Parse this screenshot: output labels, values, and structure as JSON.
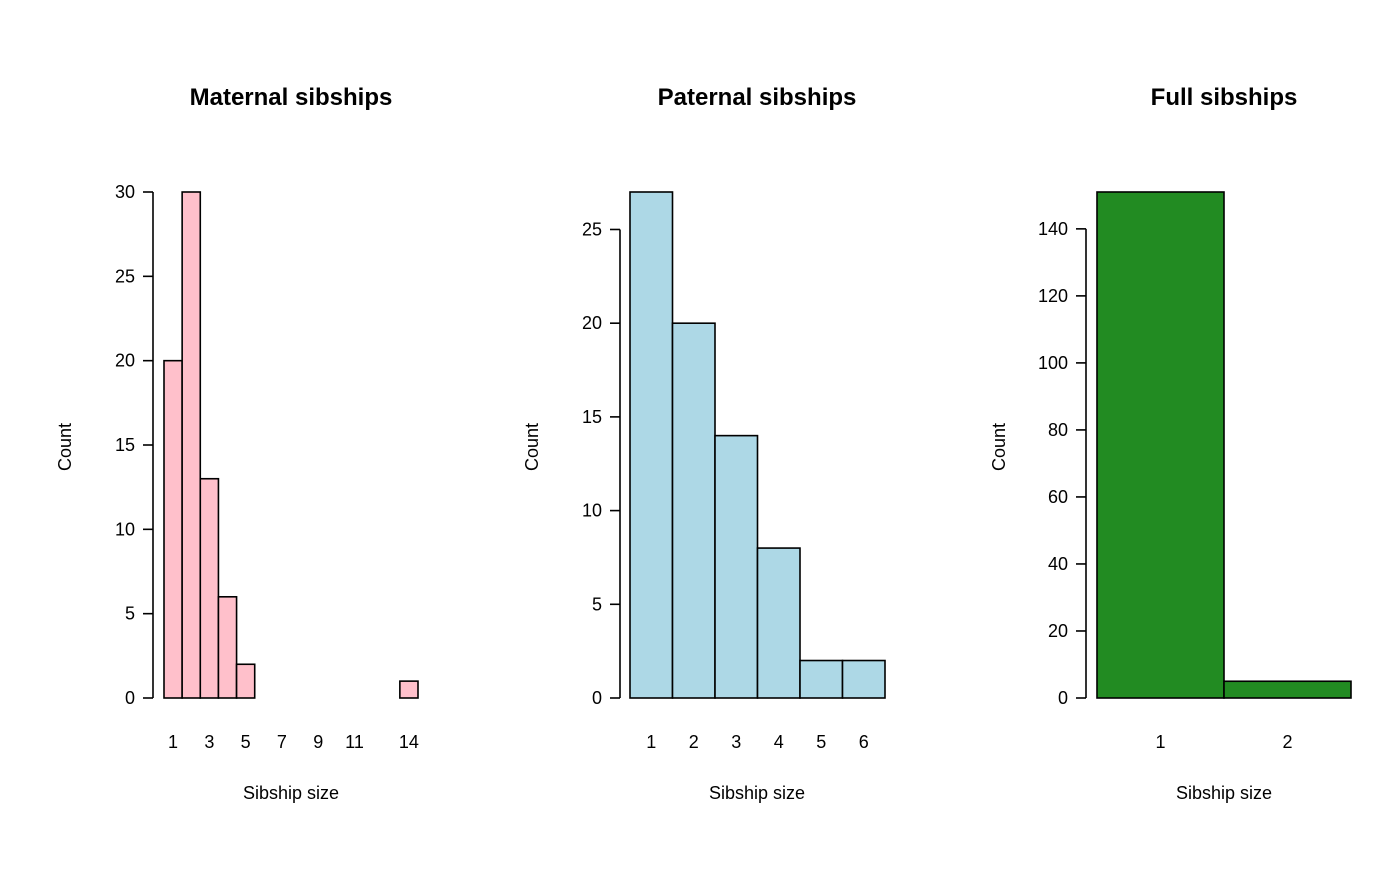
{
  "chart_data": [
    {
      "type": "bar",
      "title": "Maternal sibships",
      "xlabel": "Sibship size",
      "ylabel": "Count",
      "categories": [
        "1",
        "2",
        "3",
        "4",
        "5",
        "6",
        "7",
        "8",
        "9",
        "10",
        "11",
        "12",
        "13",
        "14"
      ],
      "values": [
        20,
        30,
        13,
        6,
        2,
        0,
        0,
        0,
        0,
        0,
        0,
        0,
        0,
        1
      ],
      "x_tick_labels": [
        "1",
        "3",
        "5",
        "7",
        "9",
        "11",
        "14"
      ],
      "y_ticks": [
        0,
        5,
        10,
        15,
        20,
        25,
        30
      ],
      "ylim": [
        0,
        30
      ],
      "fill": "#FFC0CB",
      "grid": false
    },
    {
      "type": "bar",
      "title": "Paternal sibships",
      "xlabel": "Sibship size",
      "ylabel": "Count",
      "categories": [
        "1",
        "2",
        "3",
        "4",
        "5",
        "6"
      ],
      "values": [
        27,
        20,
        14,
        8,
        2,
        2
      ],
      "x_tick_labels": [
        "1",
        "2",
        "3",
        "4",
        "5",
        "6"
      ],
      "y_ticks": [
        0,
        5,
        10,
        15,
        20,
        25
      ],
      "ylim": [
        0,
        27
      ],
      "fill": "#ADD8E6",
      "grid": false
    },
    {
      "type": "bar",
      "title": "Full sibships",
      "xlabel": "Sibship size",
      "ylabel": "Count",
      "categories": [
        "1",
        "2"
      ],
      "values": [
        151,
        5
      ],
      "x_tick_labels": [
        "1",
        "2"
      ],
      "y_ticks": [
        0,
        20,
        40,
        60,
        80,
        100,
        120,
        140
      ],
      "ylim": [
        0,
        151
      ],
      "fill": "#228B22",
      "grid": false
    }
  ]
}
